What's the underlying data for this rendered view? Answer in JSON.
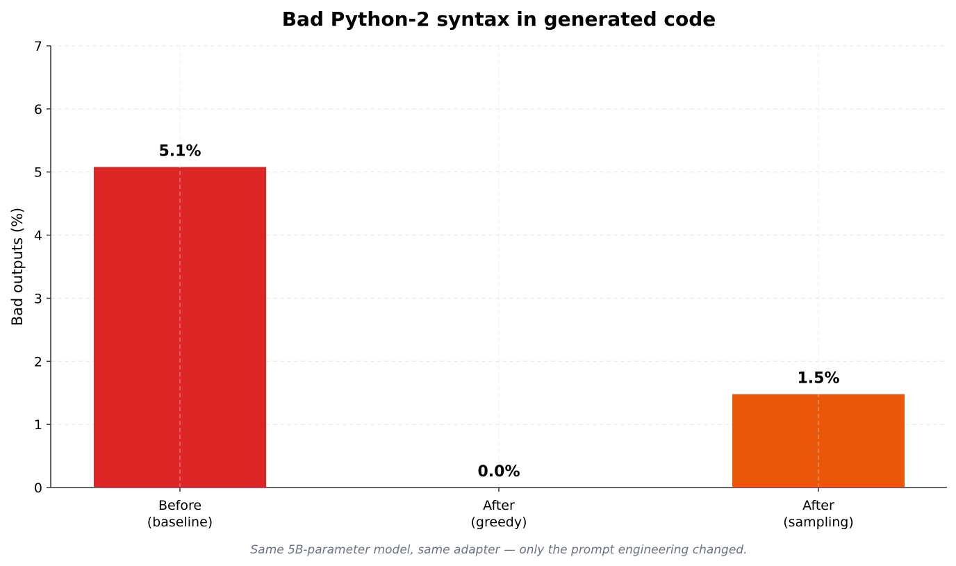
{
  "chart_data": {
    "type": "bar",
    "title": "Bad Python-2 syntax in generated code",
    "ylabel": "Bad outputs (%)",
    "xlabel": "",
    "categories": [
      [
        "Before",
        "(baseline)"
      ],
      [
        "After",
        "(greedy)"
      ],
      [
        "After",
        "(sampling)"
      ]
    ],
    "values": [
      5.08,
      0.0,
      1.48
    ],
    "data_labels": [
      "5.1%",
      "0.0%",
      "1.5%"
    ],
    "colors": [
      "#dc2626",
      "#dc2626",
      "#ea580c"
    ],
    "ylim": [
      0,
      7
    ],
    "yticks": [
      "0",
      "1",
      "2",
      "3",
      "4",
      "5",
      "6",
      "7"
    ],
    "grid": true,
    "footnote": "Same 5B-parameter model, same adapter — only the prompt engineering changed."
  }
}
